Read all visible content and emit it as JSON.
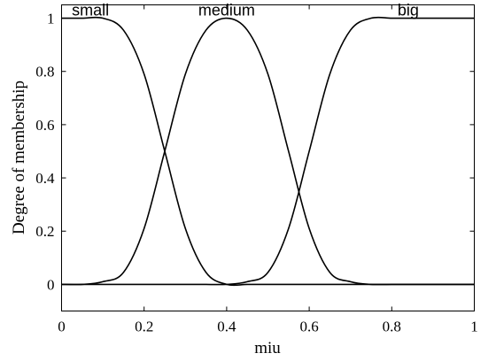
{
  "chart_data": {
    "type": "line",
    "xlabel": "miu",
    "ylabel": "Degree of membership",
    "xlim": [
      0,
      1
    ],
    "ylim": [
      -0.1,
      1.05
    ],
    "xticks": [
      0,
      0.2,
      0.4,
      0.6,
      0.8,
      1
    ],
    "xtick_labels": [
      "0",
      "0.2",
      "0.4",
      "0.6",
      "0.8",
      "1"
    ],
    "yticks": [
      0,
      0.2,
      0.4,
      0.6,
      0.8,
      1
    ],
    "ytick_labels": [
      "0",
      "0.2",
      "0.4",
      "0.6",
      "0.8",
      "1"
    ],
    "grid": false,
    "x": [
      0,
      0.05,
      0.1,
      0.15,
      0.2,
      0.25,
      0.3,
      0.35,
      0.4,
      0.45,
      0.5,
      0.55,
      0.6,
      0.65,
      0.7,
      0.75,
      0.8,
      0.85,
      0.9,
      0.95,
      1
    ],
    "series": [
      {
        "name": "small",
        "values": [
          1,
          1,
          1,
          0.955,
          0.79,
          0.5,
          0.21,
          0.045,
          0,
          0,
          0,
          0,
          0,
          0,
          0,
          0,
          0,
          0,
          0,
          0,
          0
        ],
        "label_x": 0.07,
        "label_y": 1.01
      },
      {
        "name": "medium",
        "values": [
          0,
          0,
          0.01,
          0.045,
          0.21,
          0.5,
          0.79,
          0.955,
          1,
          0.955,
          0.79,
          0.5,
          0.21,
          0.045,
          0.01,
          0,
          0,
          0,
          0,
          0,
          0
        ],
        "label_x": 0.4,
        "label_y": 1.01
      },
      {
        "name": "big",
        "values": [
          0,
          0,
          0,
          0,
          0,
          0,
          0,
          0,
          0,
          0.01,
          0.045,
          0.21,
          0.5,
          0.79,
          0.955,
          1,
          1,
          1,
          1,
          1,
          1
        ],
        "label_x": 0.84,
        "label_y": 1.01
      }
    ]
  }
}
